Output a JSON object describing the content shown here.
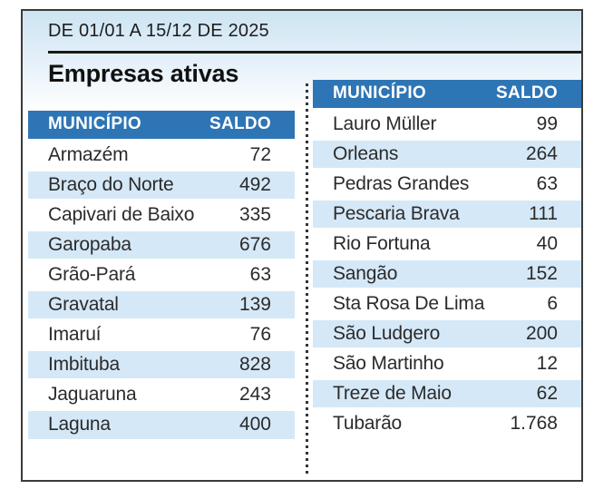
{
  "header": {
    "period": "DE 01/01 A 15/12 DE 2025",
    "title": "Empresas ativas"
  },
  "columns": {
    "municipality": "MUNICÍPIO",
    "saldo": "SALDO"
  },
  "left_table": {
    "rows": [
      [
        "Armazém",
        "72"
      ],
      [
        "Braço do Norte",
        "492"
      ],
      [
        "Capivari de Baixo",
        "335"
      ],
      [
        "Garopaba",
        "676"
      ],
      [
        "Grão-Pará",
        "63"
      ],
      [
        "Gravatal",
        "139"
      ],
      [
        "Imaruí",
        "76"
      ],
      [
        "Imbituba",
        "828"
      ],
      [
        "Jaguaruna",
        "243"
      ],
      [
        "Laguna",
        "400"
      ]
    ]
  },
  "right_table": {
    "rows": [
      [
        "Lauro Müller",
        "99"
      ],
      [
        "Orleans",
        "264"
      ],
      [
        "Pedras Grandes",
        "63"
      ],
      [
        "Pescaria Brava",
        "111"
      ],
      [
        "Rio Fortuna",
        "40"
      ],
      [
        "Sangão",
        "152"
      ],
      [
        "Sta Rosa De Lima",
        "6"
      ],
      [
        "São Ludgero",
        "200"
      ],
      [
        "São Martinho",
        "12"
      ],
      [
        "Treze de Maio",
        "62"
      ],
      [
        "Tubarão",
        "1.768"
      ]
    ]
  },
  "colors": {
    "header_blue": "#2e75b5",
    "row_stripe": "#d5e8f7",
    "gradient_top": "#cde4f2",
    "panel_border": "#3b3b3b"
  },
  "chart_data": {
    "type": "table",
    "title": "Empresas ativas",
    "subtitle": "DE 01/01 A 15/12 DE 2025",
    "columns": [
      "MUNICÍPIO",
      "SALDO"
    ],
    "rows": [
      [
        "Armazém",
        72
      ],
      [
        "Braço do Norte",
        492
      ],
      [
        "Capivari de Baixo",
        335
      ],
      [
        "Garopaba",
        676
      ],
      [
        "Grão-Pará",
        63
      ],
      [
        "Gravatal",
        139
      ],
      [
        "Imaruí",
        76
      ],
      [
        "Imbituba",
        828
      ],
      [
        "Jaguaruna",
        243
      ],
      [
        "Laguna",
        400
      ],
      [
        "Lauro Müller",
        99
      ],
      [
        "Orleans",
        264
      ],
      [
        "Pedras Grandes",
        63
      ],
      [
        "Pescaria Brava",
        111
      ],
      [
        "Rio Fortuna",
        40
      ],
      [
        "Sangão",
        152
      ],
      [
        "Sta Rosa De Lima",
        6
      ],
      [
        "São Ludgero",
        200
      ],
      [
        "São Martinho",
        12
      ],
      [
        "Treze de Maio",
        62
      ],
      [
        "Tubarão",
        1768
      ]
    ],
    "layout": {
      "split_into_two_columns": true,
      "left_rows_count": 10,
      "right_rows_count": 11,
      "striped": true
    }
  }
}
